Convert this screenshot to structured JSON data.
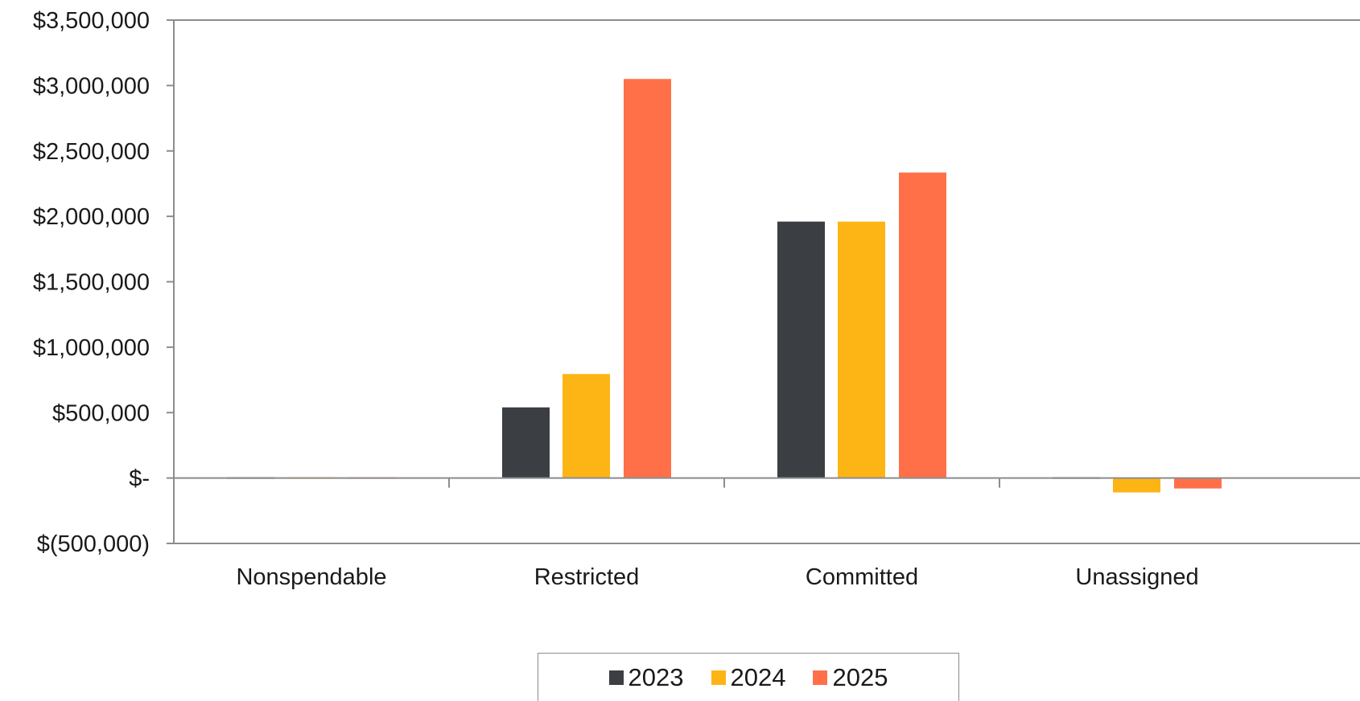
{
  "chart_data": {
    "type": "bar",
    "categories": [
      "Nonspendable",
      "Restricted",
      "Committed",
      "Unassigned"
    ],
    "series": [
      {
        "name": "2023",
        "color": "#3b3f43",
        "values": [
          0,
          540000,
          1960000,
          0
        ]
      },
      {
        "name": "2024",
        "color": "#fdb515",
        "values": [
          0,
          795000,
          1960000,
          -110000
        ]
      },
      {
        "name": "2025",
        "color": "#ff7049",
        "values": [
          0,
          3050000,
          2335000,
          -80000
        ]
      }
    ],
    "ylim": [
      -500000,
      3500000
    ],
    "yticks": [
      {
        "value": 3500000,
        "label": "$3,500,000"
      },
      {
        "value": 3000000,
        "label": "$3,000,000"
      },
      {
        "value": 2500000,
        "label": "$2,500,000"
      },
      {
        "value": 2000000,
        "label": "$2,000,000"
      },
      {
        "value": 1500000,
        "label": "$1,500,000"
      },
      {
        "value": 1000000,
        "label": "$1,000,000"
      },
      {
        "value": 500000,
        "label": "$500,000"
      },
      {
        "value": 0,
        "label": "$-"
      },
      {
        "value": -500000,
        "label": "$(500,000)"
      }
    ],
    "title": "",
    "xlabel": "",
    "ylabel": "",
    "grid": false,
    "legend_position": "bottom"
  }
}
